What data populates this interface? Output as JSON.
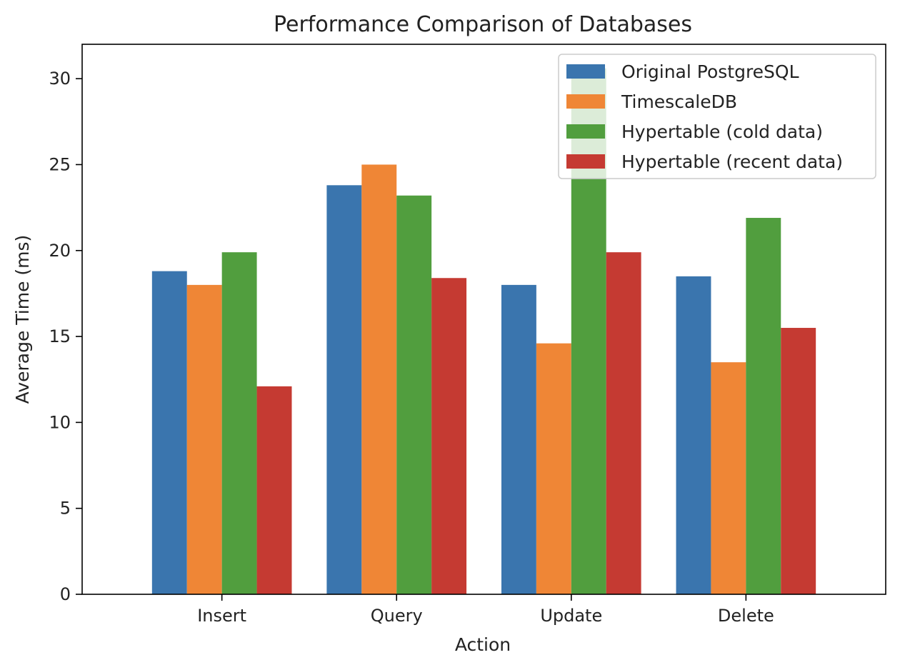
{
  "chart_data": {
    "type": "bar",
    "title": "Performance Comparison of Databases",
    "xlabel": "Action",
    "ylabel": "Average Time (ms)",
    "categories": [
      "Insert",
      "Query",
      "Update",
      "Delete"
    ],
    "ylim": [
      0,
      32
    ],
    "yticks": [
      0,
      5,
      10,
      15,
      20,
      25,
      30
    ],
    "grid": false,
    "legend_position": "top-right",
    "series": [
      {
        "name": "Original PostgreSQL",
        "color": "#3a75ae",
        "values": [
          18.8,
          23.8,
          18.0,
          18.5
        ]
      },
      {
        "name": "TimescaleDB",
        "color": "#ef8636",
        "values": [
          18.0,
          25.0,
          14.6,
          13.5
        ]
      },
      {
        "name": "Hypertable (cold data)",
        "color": "#519e3e",
        "values": [
          19.9,
          23.2,
          30.6,
          21.9
        ]
      },
      {
        "name": "Hypertable (recent data)",
        "color": "#c53a32",
        "values": [
          12.1,
          18.4,
          19.9,
          15.5
        ]
      }
    ]
  }
}
